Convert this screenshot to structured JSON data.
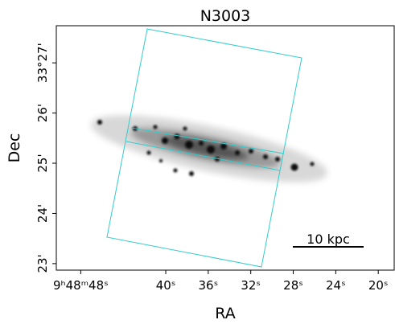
{
  "chart_data": {
    "type": "image",
    "title": "N3003",
    "xlabel": "RA",
    "ylabel": "Dec",
    "xlim": [
      50.3,
      18.5
    ],
    "xticks": [
      {
        "value": 48,
        "label": "9ʰ48ᵐ48ˢ"
      },
      {
        "value": 40,
        "label": "40ˢ"
      },
      {
        "value": 36,
        "label": "36ˢ"
      },
      {
        "value": 32,
        "label": "32ˢ"
      },
      {
        "value": 28,
        "label": "28ˢ"
      },
      {
        "value": 24,
        "label": "24ˢ"
      },
      {
        "value": 20,
        "label": "20ˢ"
      }
    ],
    "ylim": [
      22.87,
      27.74
    ],
    "yticks": [
      {
        "value": 23,
        "label": "23'"
      },
      {
        "value": 24,
        "label": "24'"
      },
      {
        "value": 25,
        "label": "25'"
      },
      {
        "value": 26,
        "label": "26'"
      },
      {
        "value": 27,
        "label": "33°27'"
      }
    ],
    "scalebar_label": "10 kpc"
  }
}
